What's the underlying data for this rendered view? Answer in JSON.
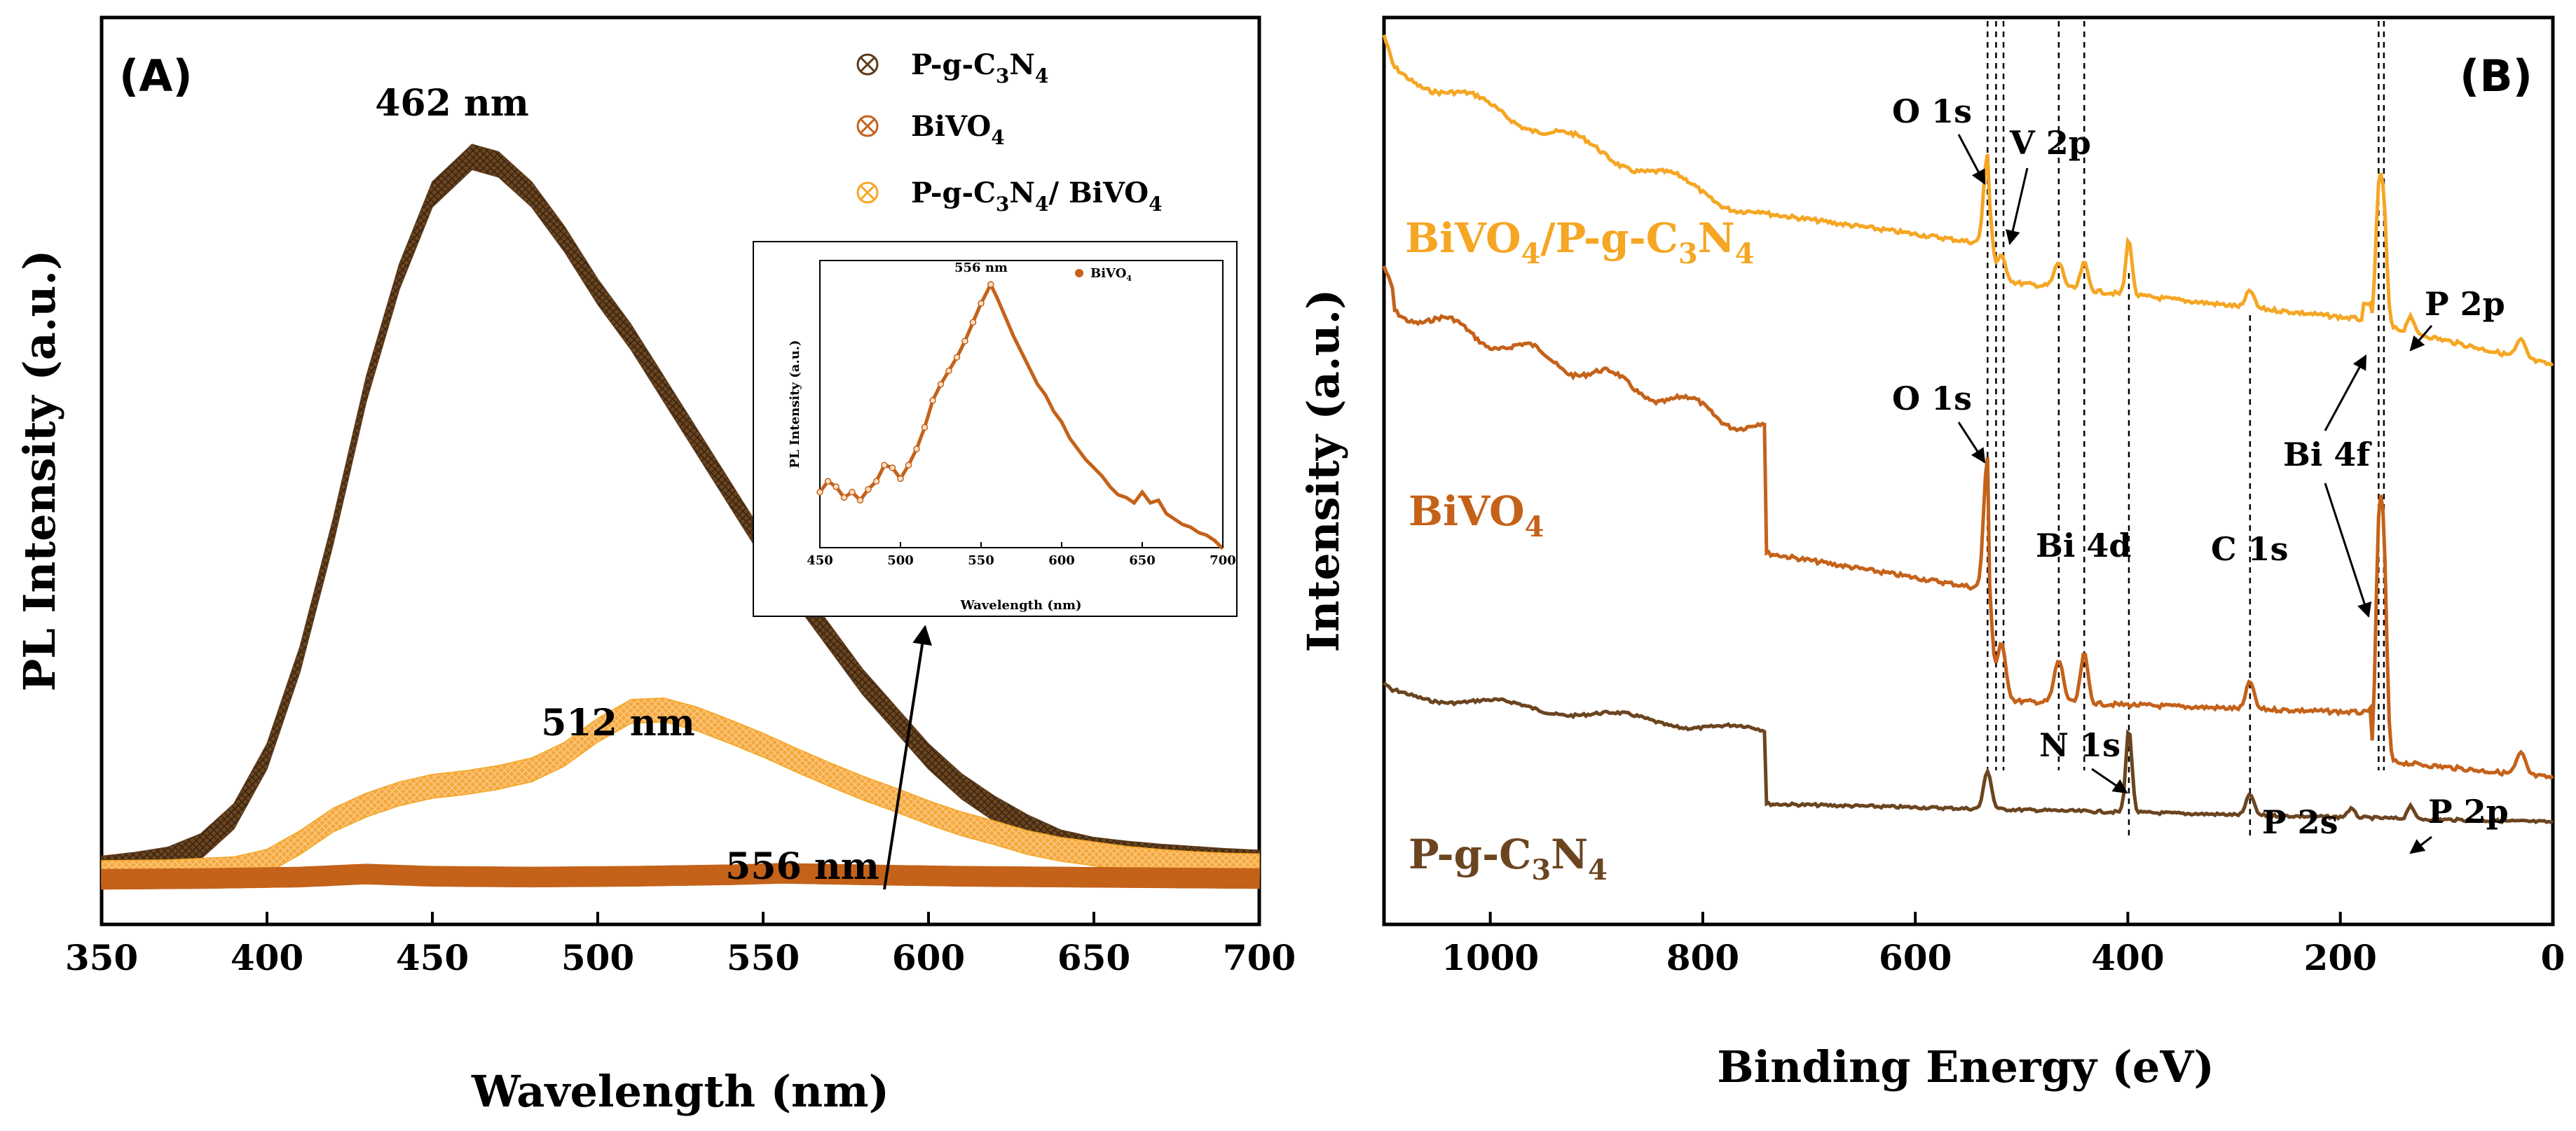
{
  "chart_data": [
    {
      "panel": "(A)",
      "type": "scatter",
      "xlabel": "Wavelength (nm)",
      "ylabel": "PL Intensity (a.u.)",
      "xlim": [
        350,
        700
      ],
      "ylim": [
        0,
        100
      ],
      "xticks": [
        "350",
        "400",
        "450",
        "500",
        "550",
        "600",
        "650",
        "700"
      ],
      "legend": {
        "position": "top-right",
        "entries": [
          {
            "name": "P-g-C3N4",
            "sub": "P-g-C",
            "s1": "3",
            "mid": "N",
            "s2": "4",
            "color": "#5c3a1c"
          },
          {
            "name": "BiVO4",
            "sub": "BiVO",
            "s1": "4",
            "color": "#c4621a"
          },
          {
            "name": "P-g-C3N4/ BiVO4",
            "sub": "P-g-C",
            "s1": "3",
            "mid": "N",
            "s2": "4",
            "tail": "/ BiVO",
            "s3": "4",
            "color": "#f5a623"
          }
        ]
      },
      "annotations": [
        {
          "text": "462 nm",
          "x": 462
        },
        {
          "text": "512 nm",
          "x": 512
        },
        {
          "text": "556 nm",
          "x": 556
        }
      ],
      "series": [
        {
          "name": "P-g-C3N4",
          "color": "#5c3a1c",
          "x": [
            350,
            360,
            370,
            380,
            390,
            400,
            410,
            420,
            430,
            440,
            450,
            462,
            470,
            480,
            490,
            500,
            510,
            520,
            530,
            540,
            550,
            560,
            570,
            580,
            590,
            600,
            610,
            620,
            630,
            640,
            650,
            660,
            670,
            680,
            690,
            700
          ],
          "y": [
            2,
            2.5,
            3.2,
            5,
            9,
            17,
            30,
            47,
            66,
            81,
            92,
            97,
            96,
            92,
            86,
            79,
            73,
            66,
            59,
            52,
            45,
            39,
            33,
            27,
            22,
            17,
            13,
            10,
            7.5,
            5.5,
            4.5,
            4,
            3.6,
            3.3,
            3,
            2.8
          ]
        },
        {
          "name": "P-g-C3N4/ BiVO4",
          "color": "#f5a623",
          "x": [
            350,
            370,
            390,
            400,
            410,
            420,
            430,
            440,
            450,
            460,
            470,
            480,
            490,
            500,
            510,
            520,
            530,
            540,
            550,
            560,
            570,
            580,
            590,
            600,
            610,
            620,
            630,
            640,
            650,
            660,
            670,
            680,
            690,
            700
          ],
          "y": [
            1.5,
            1.6,
            2,
            3,
            5.5,
            8.5,
            10.5,
            12,
            13,
            13.5,
            14.2,
            15.2,
            17.3,
            20.5,
            23,
            23.2,
            22,
            20.3,
            18.5,
            16.5,
            14.6,
            12.8,
            11.2,
            9.5,
            8,
            6.8,
            5.5,
            4.6,
            4,
            3.4,
            3,
            2.7,
            2.5,
            2.4
          ]
        },
        {
          "name": "BiVO4",
          "color": "#c4621a",
          "x": [
            350,
            380,
            410,
            430,
            450,
            480,
            510,
            540,
            556,
            580,
            610,
            640,
            670,
            700
          ],
          "y": [
            0.6,
            0.7,
            0.9,
            1.3,
            1.0,
            0.9,
            1.0,
            1.2,
            1.4,
            1.2,
            1.0,
            0.9,
            0.8,
            0.7
          ]
        }
      ],
      "inset": {
        "xlabel": "Wavelength (nm)",
        "ylabel": "PL Intensity (a.u.)",
        "xlim": [
          450,
          700
        ],
        "ylim": [
          0,
          100
        ],
        "xticks": [
          "450",
          "500",
          "550",
          "600",
          "650",
          "700"
        ],
        "legend": "BiVO4",
        "legend_sub": "BiVO",
        "legend_s": "4",
        "peak": "556 nm",
        "series": {
          "name": "BiVO4",
          "color": "#c4621a",
          "x": [
            450,
            455,
            460,
            465,
            470,
            475,
            480,
            485,
            490,
            495,
            500,
            505,
            510,
            515,
            520,
            525,
            530,
            535,
            540,
            545,
            550,
            556,
            560,
            565,
            570,
            575,
            580,
            585,
            590,
            595,
            600,
            605,
            610,
            615,
            620,
            625,
            630,
            635,
            640,
            645,
            650,
            655,
            660,
            665,
            670,
            675,
            680,
            685,
            690,
            695,
            700
          ],
          "y": [
            18,
            22,
            20,
            16,
            18,
            15,
            19,
            22,
            28,
            27,
            23,
            28,
            34,
            42,
            52,
            58,
            63,
            68,
            74,
            81,
            88,
            95,
            90,
            83,
            76,
            70,
            64,
            58,
            54,
            48,
            44,
            38,
            34,
            30,
            27,
            24,
            20,
            17,
            16,
            14,
            18,
            14,
            15,
            10,
            8,
            6,
            5,
            3,
            2,
            0,
            -3
          ]
        }
      }
    },
    {
      "panel": "(B)",
      "type": "line",
      "xlabel": "Binding Energy (eV)",
      "ylabel": "Intensity (a.u.)",
      "xlim": [
        1100,
        0
      ],
      "ylim": [
        0,
        100
      ],
      "xticks": [
        "1000",
        "800",
        "600",
        "400",
        "200",
        "0"
      ],
      "series": [
        {
          "name": "BiVO4/P-g-C3N4",
          "color": "#f5a623"
        },
        {
          "name": "BiVO4",
          "color": "#c4621a"
        },
        {
          "name": "P-g-C3N4",
          "color": "#6b4520"
        }
      ],
      "series_labels": [
        {
          "sub": "BiVO",
          "s1": "4",
          "mid": "/P-g-C",
          "s2": "3",
          "tail": "N",
          "s3": "4",
          "color": "#f5a623"
        },
        {
          "sub": "BiVO",
          "s1": "4",
          "color": "#c4621a"
        },
        {
          "sub": "P-g-C",
          "s1": "3",
          "mid": "N",
          "s2": "4",
          "color": "#6b4520"
        }
      ],
      "peak_labels": [
        "O 1s",
        "V 2p",
        "O 1s",
        "Bi 4d",
        "C 1s",
        "Bi 4f",
        "P 2p",
        "N 1s",
        "P 2s",
        "P 2p"
      ],
      "reference_lines_eV": [
        532,
        524,
        517,
        465,
        441,
        399,
        285,
        164,
        159
      ]
    }
  ]
}
